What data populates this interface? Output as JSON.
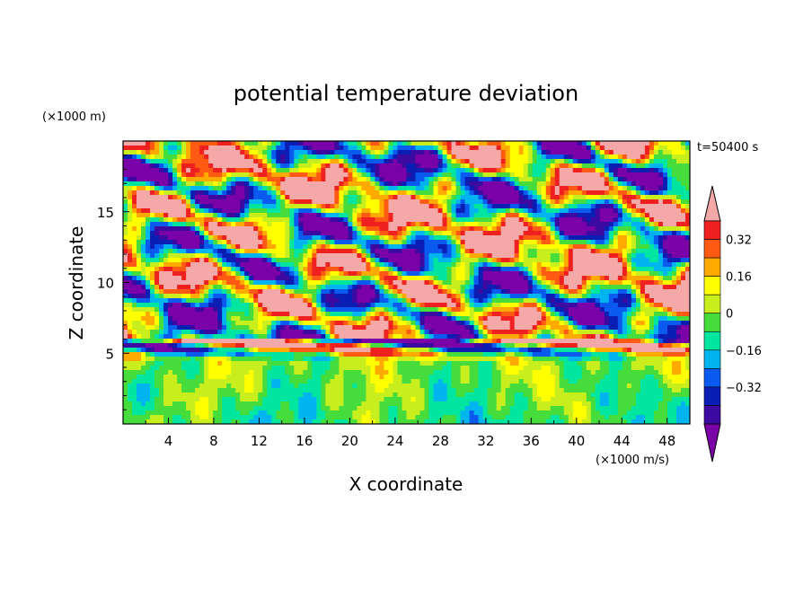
{
  "chart_data": {
    "type": "heatmap",
    "title": "potential temperature deviation",
    "time_label": "t=50400 s",
    "xlabel": "X coordinate",
    "ylabel": "Z coordinate",
    "x_unit": "(×1000 m/s)",
    "y_unit": "(×1000 m)",
    "xlim": [
      0,
      50
    ],
    "ylim": [
      0,
      20
    ],
    "x_ticks": [
      4,
      8,
      12,
      16,
      20,
      24,
      28,
      32,
      36,
      40,
      44,
      48
    ],
    "y_ticks": [
      5,
      10,
      15
    ],
    "colorbar": {
      "levels": [
        -0.48,
        -0.4,
        -0.32,
        -0.24,
        -0.16,
        -0.08,
        0,
        0.08,
        0.16,
        0.24,
        0.32,
        0.4
      ],
      "labeled_levels": [
        0.32,
        0.16,
        0,
        -0.16,
        -0.32
      ],
      "labels": [
        "0.32",
        "0.16",
        "0",
        "−0.16",
        "−0.32"
      ],
      "colors": [
        "#7a00a8",
        "#3c0aa0",
        "#0a1eb4",
        "#0a5af0",
        "#00b4f0",
        "#00e6a0",
        "#46dc3c",
        "#c8ee1e",
        "#ffff00",
        "#ffaa00",
        "#ff5a14",
        "#ee2020",
        "#f4a8a8"
      ],
      "extend": "both"
    }
  }
}
